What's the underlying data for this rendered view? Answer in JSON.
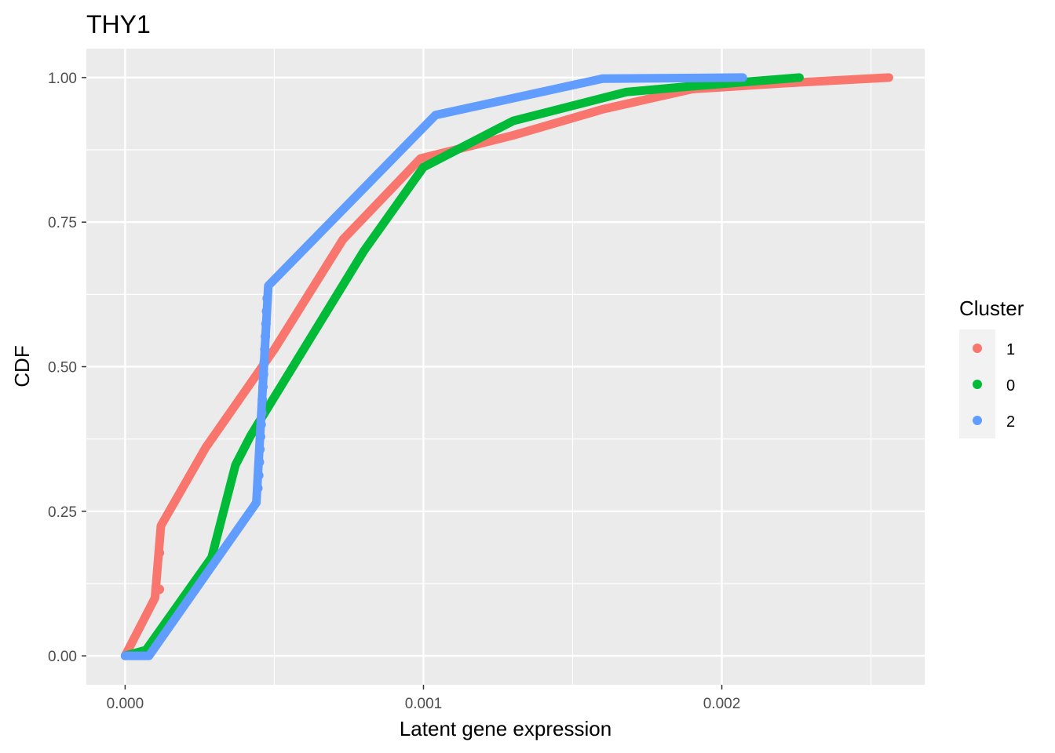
{
  "chart_data": {
    "type": "line",
    "title": "THY1",
    "xlabel": "Latent gene expression",
    "ylabel": "CDF",
    "xlim": [
      -0.00013,
      0.00268
    ],
    "ylim": [
      -0.05,
      1.05
    ],
    "x_ticks": [
      0.0,
      0.001,
      0.002
    ],
    "x_tick_labels": [
      "0.000",
      "0.001",
      "0.002"
    ],
    "y_ticks": [
      0.0,
      0.25,
      0.5,
      0.75,
      1.0
    ],
    "y_tick_labels": [
      "0.00",
      "0.25",
      "0.50",
      "0.75",
      "1.00"
    ],
    "grid": true,
    "legend": {
      "title": "Cluster",
      "position": "right"
    },
    "series": [
      {
        "name": "1",
        "color": "#F8766D",
        "x": [
          0.0,
          0.0001,
          0.00012,
          0.00027,
          0.0005,
          0.00073,
          0.00099,
          0.0013,
          0.0016,
          0.0019,
          0.0022,
          0.00256
        ],
        "y": [
          0.0,
          0.1,
          0.225,
          0.36,
          0.53,
          0.72,
          0.86,
          0.9,
          0.945,
          0.98,
          0.99,
          1.0
        ],
        "points": [
          {
            "x": 0.000115,
            "y": 0.115
          },
          {
            "x": 0.000115,
            "y": 0.178
          }
        ]
      },
      {
        "name": "0",
        "color": "#00BA38",
        "x": [
          0.0,
          7e-05,
          0.00029,
          0.00037,
          0.00042,
          0.0008,
          0.001,
          0.0013,
          0.00168,
          0.0019,
          0.00226
        ],
        "y": [
          0.0,
          0.01,
          0.17,
          0.33,
          0.38,
          0.7,
          0.845,
          0.925,
          0.975,
          0.985,
          1.0
        ],
        "points": []
      },
      {
        "name": "2",
        "color": "#619CFF",
        "x": [
          0.0,
          8e-05,
          0.00044,
          0.00048,
          0.00104,
          0.0016,
          0.00207
        ],
        "y": [
          0.0,
          0.0,
          0.265,
          0.64,
          0.935,
          0.998,
          1.0
        ],
        "points": [
          {
            "x": 0.000445,
            "y": 0.29
          },
          {
            "x": 0.000448,
            "y": 0.312
          },
          {
            "x": 0.00045,
            "y": 0.335
          },
          {
            "x": 0.000452,
            "y": 0.357
          },
          {
            "x": 0.000454,
            "y": 0.379
          },
          {
            "x": 0.000456,
            "y": 0.4
          },
          {
            "x": 0.000458,
            "y": 0.42
          },
          {
            "x": 0.00046,
            "y": 0.443
          },
          {
            "x": 0.000462,
            "y": 0.465
          },
          {
            "x": 0.000464,
            "y": 0.487
          },
          {
            "x": 0.000466,
            "y": 0.508
          },
          {
            "x": 0.000468,
            "y": 0.53
          },
          {
            "x": 0.00047,
            "y": 0.552
          },
          {
            "x": 0.000472,
            "y": 0.574
          },
          {
            "x": 0.000474,
            "y": 0.596
          },
          {
            "x": 0.000476,
            "y": 0.618
          }
        ]
      }
    ],
    "legend_order": [
      "1",
      "0",
      "2"
    ]
  }
}
